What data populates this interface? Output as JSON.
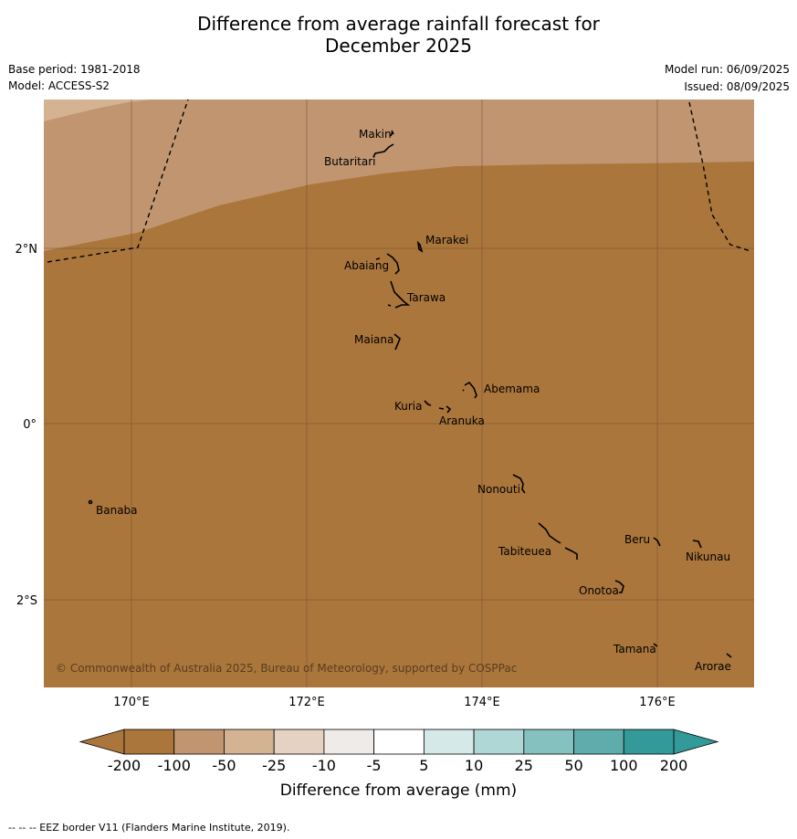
{
  "title": {
    "line1": "Difference from average rainfall forecast for",
    "line2": "December 2025"
  },
  "meta": {
    "base_period": "Base period: 1981-2018",
    "model": "Model: ACCESS-S2",
    "model_run": "Model run: 06/09/2025",
    "issued": "Issued: 08/09/2025"
  },
  "map": {
    "copyright": "© Commonwealth of Australia 2025, Bureau of Meteorology, supported by COSPPac",
    "x_ticks": [
      "170°E",
      "172°E",
      "174°E",
      "176°E"
    ],
    "y_ticks": [
      "2°N",
      "0°",
      "2°S"
    ],
    "places": [
      {
        "name": "Makin"
      },
      {
        "name": "Butaritari"
      },
      {
        "name": "Marakei"
      },
      {
        "name": "Abaiang"
      },
      {
        "name": "Tarawa"
      },
      {
        "name": "Maiana"
      },
      {
        "name": "Abemama"
      },
      {
        "name": "Kuria"
      },
      {
        "name": "Aranuka"
      },
      {
        "name": "Banaba"
      },
      {
        "name": "Nonouti"
      },
      {
        "name": "Beru"
      },
      {
        "name": "Tabiteuea"
      },
      {
        "name": "Nikunau"
      },
      {
        "name": "Onotoa"
      },
      {
        "name": "Tamana"
      },
      {
        "name": "Arorae"
      }
    ]
  },
  "legend": {
    "title": "Difference from average (mm)",
    "ticks": [
      "-200",
      "-100",
      "-50",
      "-25",
      "-10",
      "-5",
      "5",
      "10",
      "25",
      "50",
      "100",
      "200"
    ],
    "colors": [
      "#ab763c",
      "#c09570",
      "#d4b393",
      "#e5d2c2",
      "#efebe8",
      "#ffffff",
      "#d5e9e9",
      "#afd7d5",
      "#85c1bf",
      "#5eadac",
      "#339999"
    ],
    "under_color": "#ab763c",
    "over_color": "#339999"
  },
  "footnote": "--  --  -- EEZ border V11 (Flanders Marine Institute, 2019)."
}
